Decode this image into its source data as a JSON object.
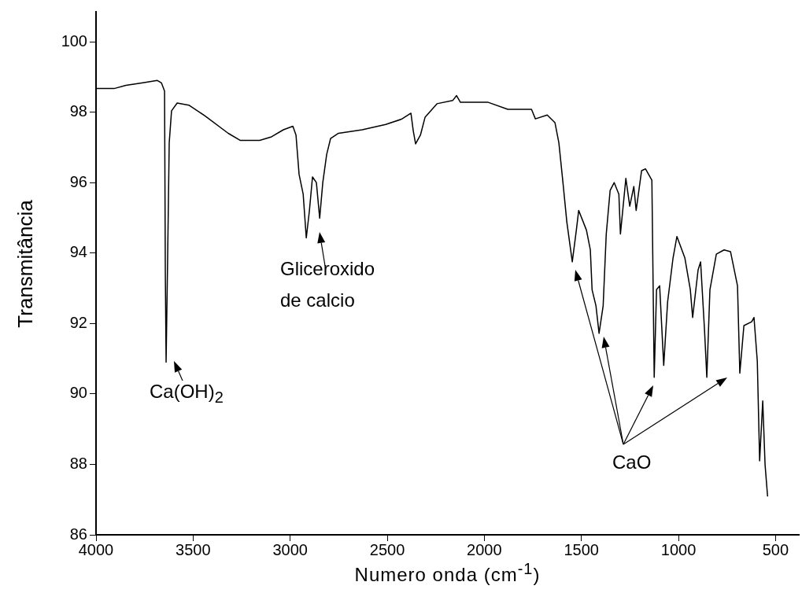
{
  "chart_data": {
    "type": "line",
    "xlabel": "Numero onda (cm$^{-1}$)",
    "ylabel": "Transmitância",
    "xlim": [
      4000,
      380
    ],
    "xticks": [
      4000,
      3500,
      3000,
      2500,
      2000,
      1500,
      1000,
      500
    ],
    "ylim": [
      86,
      100.85
    ],
    "yticks": [
      86,
      88,
      90,
      92,
      94,
      96,
      98,
      100
    ],
    "grid": false,
    "legend": false,
    "marker": "none",
    "line_style": "solid",
    "annotations": [
      "Ca(OH)$_{2}$",
      "Gliceroxido\nde calcio",
      "CaO"
    ],
    "series": [
      {
        "color": "#000000",
        "x": [
          4000,
          3907,
          3846,
          3765,
          3684,
          3663,
          3647,
          3643,
          3639,
          3631,
          3623,
          3611,
          3582,
          3522,
          3440,
          3319,
          3258,
          3157,
          3096,
          3035,
          2986,
          2970,
          2954,
          2933,
          2917,
          2901,
          2885,
          2865,
          2848,
          2832,
          2812,
          2792,
          2751,
          2629,
          2508,
          2427,
          2378,
          2366,
          2354,
          2329,
          2305,
          2244,
          2163,
          2143,
          2123,
          1980,
          1879,
          1757,
          1737,
          1676,
          1636,
          1616,
          1595,
          1575,
          1547,
          1526,
          1514,
          1474,
          1454,
          1445,
          1425,
          1409,
          1388,
          1372,
          1352,
          1331,
          1307,
          1299,
          1271,
          1251,
          1230,
          1218,
          1190,
          1170,
          1137,
          1125,
          1113,
          1097,
          1076,
          1056,
          1028,
          1008,
          967,
          939,
          927,
          899,
          886,
          866,
          854,
          838,
          805,
          765,
          732,
          696,
          684,
          663,
          623,
          611,
          594,
          582,
          566,
          554,
          541
        ],
        "values": [
          98.67,
          98.67,
          98.76,
          98.83,
          98.9,
          98.83,
          98.6,
          93.4,
          90.9,
          93.9,
          97.13,
          98.04,
          98.26,
          98.2,
          97.9,
          97.4,
          97.2,
          97.2,
          97.3,
          97.5,
          97.6,
          97.35,
          96.23,
          95.67,
          94.43,
          95.2,
          96.16,
          96.0,
          94.99,
          96.0,
          96.8,
          97.25,
          97.4,
          97.5,
          97.65,
          97.8,
          97.97,
          97.47,
          97.1,
          97.35,
          97.86,
          98.24,
          98.33,
          98.47,
          98.28,
          98.28,
          98.08,
          98.08,
          97.81,
          97.92,
          97.7,
          97.13,
          96.0,
          94.88,
          93.75,
          94.65,
          95.21,
          94.65,
          94.09,
          92.96,
          92.5,
          91.72,
          92.5,
          94.54,
          95.78,
          96.0,
          95.67,
          94.54,
          96.12,
          95.33,
          95.89,
          95.21,
          96.34,
          96.39,
          96.07,
          90.47,
          92.96,
          93.07,
          90.81,
          92.61,
          93.86,
          94.47,
          93.86,
          92.96,
          92.17,
          93.52,
          93.75,
          91.83,
          90.47,
          92.96,
          93.97,
          94.09,
          94.04,
          93.07,
          90.59,
          91.94,
          92.05,
          92.17,
          90.93,
          88.1,
          89.8,
          87.99,
          87.09
        ]
      }
    ]
  }
}
